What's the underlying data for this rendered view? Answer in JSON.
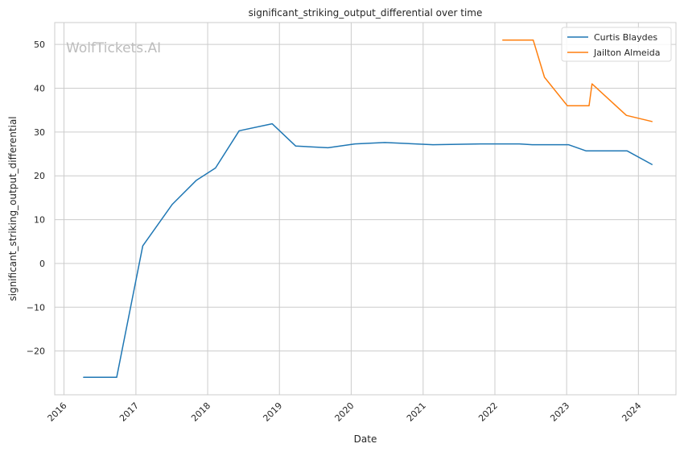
{
  "chart_data": {
    "type": "line",
    "title": "significant_striking_output_differential over time",
    "xlabel": "Date",
    "ylabel": "significant_striking_output_differential",
    "watermark": "WolfTickets.AI",
    "x_tick_labels": [
      "2016",
      "2017",
      "2018",
      "2019",
      "2020",
      "2021",
      "2022",
      "2023",
      "2024"
    ],
    "y_tick_labels": [
      "−20",
      "−10",
      "0",
      "10",
      "20",
      "30",
      "40",
      "50"
    ],
    "y_ticks": [
      -20,
      -10,
      0,
      10,
      20,
      30,
      40,
      50
    ],
    "xlim": [
      "2015-11-15",
      "2024-07-10"
    ],
    "ylim": [
      -30,
      55
    ],
    "grid": true,
    "legend_position": "top-right",
    "series": [
      {
        "name": "Curtis Blaydes",
        "color": "#1f77b4",
        "points": [
          [
            "2016-04-10",
            -26.0
          ],
          [
            "2016-09-25",
            -26.0
          ],
          [
            "2017-02-05",
            4.0
          ],
          [
            "2017-07-05",
            13.5
          ],
          [
            "2017-11-05",
            19.0
          ],
          [
            "2018-02-10",
            21.8
          ],
          [
            "2018-06-10",
            30.3
          ],
          [
            "2018-11-25",
            31.9
          ],
          [
            "2019-03-25",
            26.8
          ],
          [
            "2019-09-05",
            26.4
          ],
          [
            "2020-01-20",
            27.3
          ],
          [
            "2020-06-20",
            27.6
          ],
          [
            "2021-02-20",
            27.1
          ],
          [
            "2021-10-20",
            27.3
          ],
          [
            "2022-05-05",
            27.3
          ],
          [
            "2022-07-10",
            27.1
          ],
          [
            "2023-01-10",
            27.1
          ],
          [
            "2023-04-10",
            25.7
          ],
          [
            "2023-11-05",
            25.7
          ],
          [
            "2024-03-10",
            22.6
          ]
        ]
      },
      {
        "name": "Jailton Almeida",
        "color": "#ff7f0e",
        "points": [
          [
            "2022-02-10",
            51.0
          ],
          [
            "2022-07-15",
            51.0
          ],
          [
            "2022-09-10",
            42.5
          ],
          [
            "2023-01-05",
            36.0
          ],
          [
            "2023-04-25",
            36.0
          ],
          [
            "2023-05-10",
            41.0
          ],
          [
            "2023-11-01",
            33.8
          ],
          [
            "2024-03-10",
            32.4
          ]
        ]
      }
    ]
  }
}
